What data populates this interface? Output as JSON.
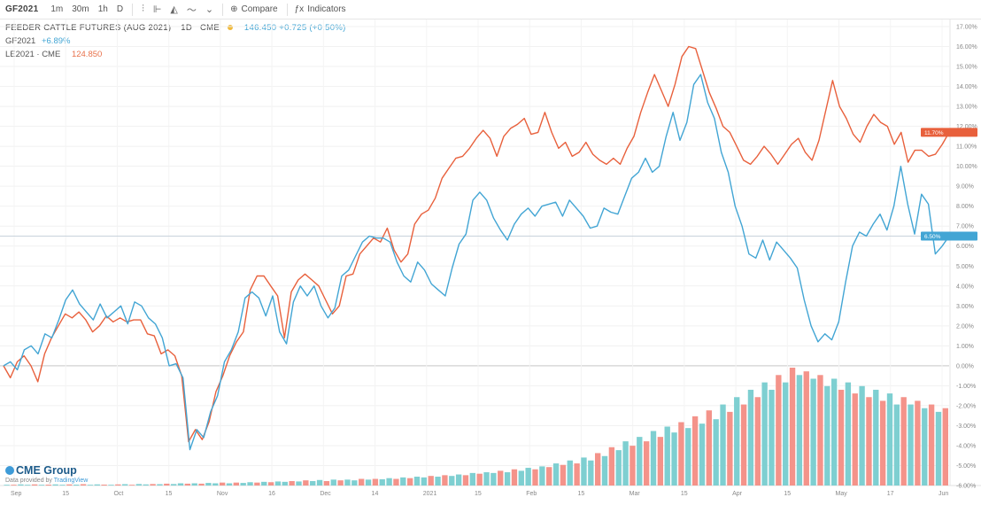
{
  "toolbar": {
    "symbol": "GF2021",
    "intervals": [
      "1m",
      "30m",
      "1h",
      "D"
    ],
    "compare_label": "Compare",
    "indicators_label": "Indicators"
  },
  "legend": {
    "title": "FEEDER CATTLE FUTURES (AUG 2021)",
    "interval": "1D",
    "exchange": "CME",
    "ohlc": "146.450  +0.725 (+0.50%)",
    "series2_label": "GF2021",
    "series2_value": "+6.89%",
    "series3_label": "LE2021 · CME",
    "series3_value": "124.850"
  },
  "logo": {
    "brand": "CME Group",
    "sub_prefix": "Data provided by",
    "sub_brand": "TradingView"
  },
  "chart_data": {
    "type": "line",
    "xlabel": "",
    "ylabel": "",
    "x_tick_labels": [
      "Sep",
      "15",
      "Oct",
      "15",
      "Nov",
      "16",
      "Dec",
      "14",
      "2021",
      "15",
      "Feb",
      "15",
      "Mar",
      "15",
      "Apr",
      "15",
      "May",
      "17",
      "Jun"
    ],
    "y_tick_labels": [
      "17.00%",
      "16.00%",
      "15.00%",
      "14.00%",
      "13.00%",
      "12.00%",
      "11.00%",
      "10.00%",
      "9.00%",
      "8.00%",
      "7.00%",
      "6.00%",
      "5.00%",
      "4.00%",
      "3.00%",
      "2.00%",
      "1.00%",
      "0.00%",
      "-1.00%",
      "-2.00%",
      "-3.00%",
      "-4.00%",
      "-5.00%",
      "-6.00%"
    ],
    "ylim": [
      -6,
      17
    ],
    "grid": true,
    "series": [
      {
        "color": "#e8603c",
        "values": [
          0.0,
          -0.6,
          0.2,
          0.5,
          0.0,
          -0.8,
          0.6,
          1.4,
          2.0,
          2.6,
          2.4,
          2.7,
          2.3,
          1.7,
          2.0,
          2.5,
          2.2,
          2.4,
          2.2,
          2.3,
          2.3,
          1.6,
          1.5,
          0.6,
          0.8,
          0.5,
          -0.5,
          -3.8,
          -3.2,
          -3.7,
          -2.8,
          -1.3,
          -0.5,
          0.5,
          1.2,
          1.7,
          3.8,
          4.5,
          4.5,
          4.0,
          3.5,
          1.4,
          3.7,
          4.3,
          4.6,
          4.3,
          4.0,
          3.3,
          2.6,
          3.0,
          4.5,
          4.6,
          5.6,
          6.0,
          6.4,
          6.2,
          6.9,
          5.8,
          5.2,
          5.6,
          7.1,
          7.6,
          7.8,
          8.4,
          9.4,
          9.9,
          10.4,
          10.5,
          10.9,
          11.4,
          11.8,
          11.4,
          10.5,
          11.5,
          11.9,
          12.1,
          12.4,
          11.6,
          11.7,
          12.7,
          11.7,
          10.9,
          11.2,
          10.5,
          10.7,
          11.2,
          10.6,
          10.3,
          10.1,
          10.4,
          10.1,
          10.9,
          11.5,
          12.7,
          13.7,
          14.6,
          13.8,
          13.0,
          14.1,
          15.5,
          16.0,
          15.9,
          14.8,
          13.7,
          12.9,
          12.0,
          11.7,
          11.0,
          10.3,
          10.1,
          10.5,
          11.0,
          10.6,
          10.1,
          10.6,
          11.1,
          11.4,
          10.7,
          10.3,
          11.3,
          12.8,
          14.3,
          13.0,
          12.4,
          11.6,
          11.2,
          12.0,
          12.6,
          12.2,
          12.0,
          11.1,
          11.7,
          10.2,
          10.8,
          10.8,
          10.5,
          10.6,
          11.1,
          11.7
        ]
      },
      {
        "color": "#42a5d4",
        "values": [
          0.0,
          0.2,
          -0.2,
          0.8,
          1.0,
          0.6,
          1.6,
          1.4,
          2.3,
          3.3,
          3.8,
          3.1,
          2.7,
          2.3,
          3.1,
          2.4,
          2.7,
          3.0,
          2.1,
          3.2,
          3.0,
          2.4,
          2.1,
          1.4,
          0.0,
          0.1,
          -0.6,
          -4.2,
          -3.2,
          -3.6,
          -2.3,
          -1.5,
          0.2,
          0.8,
          1.7,
          3.4,
          3.7,
          3.4,
          2.5,
          3.5,
          1.7,
          1.1,
          3.2,
          4.0,
          3.5,
          4.0,
          3.0,
          2.4,
          2.9,
          4.5,
          4.8,
          5.5,
          6.2,
          6.5,
          6.4,
          6.4,
          6.2,
          5.2,
          4.5,
          4.2,
          5.2,
          4.8,
          4.1,
          3.8,
          3.5,
          4.9,
          6.1,
          6.6,
          8.3,
          8.7,
          8.3,
          7.4,
          6.8,
          6.3,
          7.1,
          7.6,
          7.9,
          7.5,
          8.0,
          8.1,
          8.2,
          7.5,
          8.3,
          7.9,
          7.5,
          6.9,
          7.0,
          7.9,
          7.7,
          7.6,
          8.5,
          9.4,
          9.7,
          10.4,
          9.7,
          10.0,
          11.5,
          12.7,
          11.3,
          12.2,
          14.1,
          14.6,
          13.2,
          12.4,
          10.7,
          9.7,
          8.0,
          7.0,
          5.6,
          5.4,
          6.3,
          5.3,
          6.2,
          5.8,
          5.4,
          4.9,
          3.3,
          2.0,
          1.2,
          1.6,
          1.3,
          2.2,
          4.2,
          6.0,
          6.7,
          6.5,
          7.1,
          7.6,
          6.8,
          8.0,
          10.0,
          8.1,
          6.6,
          8.6,
          8.1,
          5.6,
          6.0,
          6.5
        ]
      }
    ],
    "volume": {
      "up_color": "#7ecfd1",
      "down_color": "#f4938a",
      "values": [
        0.1,
        0.1,
        0.15,
        0.1,
        0.15,
        0.1,
        0.12,
        0.15,
        0.1,
        0.15,
        0.12,
        0.18,
        0.1,
        0.15,
        0.12,
        0.1,
        0.15,
        0.18,
        0.1,
        0.2,
        0.15,
        0.2,
        0.18,
        0.25,
        0.2,
        0.3,
        0.25,
        0.3,
        0.25,
        0.35,
        0.3,
        0.4,
        0.3,
        0.4,
        0.35,
        0.45,
        0.4,
        0.5,
        0.45,
        0.55,
        0.5,
        0.6,
        0.55,
        0.7,
        0.6,
        0.75,
        0.6,
        0.8,
        0.7,
        0.8,
        0.7,
        0.9,
        0.8,
        0.9,
        0.85,
        1.0,
        0.9,
        1.1,
        1.0,
        1.2,
        1.1,
        1.3,
        1.2,
        1.4,
        1.3,
        1.5,
        1.4,
        1.7,
        1.6,
        1.8,
        1.7,
        2.0,
        1.8,
        2.2,
        2.0,
        2.4,
        2.2,
        2.6,
        2.5,
        3.0,
        2.8,
        3.4,
        3.0,
        3.8,
        3.4,
        4.4,
        4.0,
        5.2,
        4.8,
        6.0,
        5.4,
        6.6,
        6.0,
        7.4,
        6.6,
        8.0,
        7.2,
        8.6,
        7.8,
        9.4,
        8.4,
        10.2,
        9.0,
        11.0,
        10.0,
        12.0,
        11.0,
        13.0,
        12.0,
        14.0,
        13.0,
        15.0,
        14.0,
        16.0,
        15.0,
        15.5,
        14.5,
        15.0,
        13.5,
        14.5,
        13.0,
        14.0,
        12.5,
        13.5,
        12.0,
        13.0,
        11.5,
        12.5,
        11.0,
        12.0,
        11.0,
        11.5,
        10.5,
        11.0,
        10.0,
        10.5
      ],
      "directions": [
        1,
        0,
        1,
        1,
        0,
        1,
        0,
        1,
        1,
        0,
        1,
        0,
        1,
        1,
        0,
        1,
        0,
        1,
        0,
        1,
        1,
        0,
        1,
        0,
        1,
        1,
        0,
        1,
        0,
        1,
        1,
        0,
        1,
        0,
        1,
        1,
        0,
        1,
        0,
        1,
        1,
        0,
        1,
        0,
        1,
        1,
        0,
        1,
        0,
        1,
        1,
        0,
        1,
        0,
        1,
        1,
        0,
        1,
        0,
        1,
        1,
        0,
        1,
        0,
        1,
        1,
        0,
        1,
        0,
        1,
        1,
        0,
        1,
        0,
        1,
        1,
        0,
        1,
        0,
        1,
        0,
        1,
        0,
        1,
        1,
        0,
        1,
        0,
        1,
        1,
        0,
        1,
        0,
        1,
        0,
        1,
        1,
        0,
        1,
        0,
        1,
        0,
        1,
        1,
        0,
        1,
        0,
        1,
        0,
        1,
        1,
        0,
        1,
        0,
        1,
        0,
        1,
        0,
        1,
        1,
        0,
        1,
        0,
        1,
        0,
        1,
        0,
        1,
        1,
        0,
        1,
        0,
        1,
        0,
        1,
        0,
        1,
        0,
        1
      ]
    }
  }
}
